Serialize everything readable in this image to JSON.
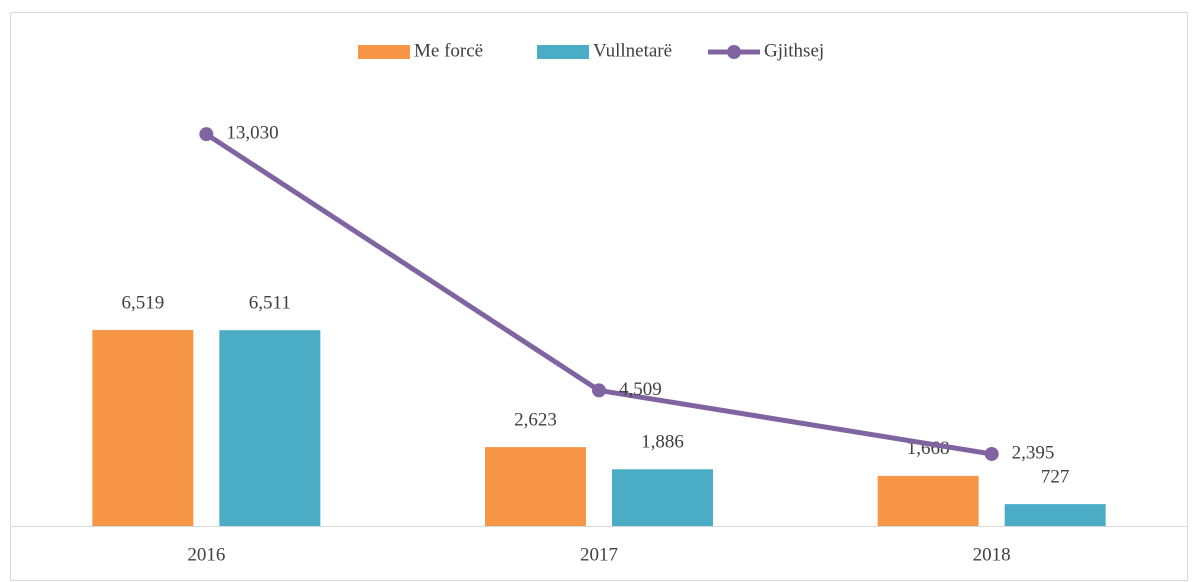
{
  "chart_data": {
    "type": "bar",
    "categories": [
      "2016",
      "2017",
      "2018"
    ],
    "ylim": [
      0,
      14000
    ],
    "legend": "top",
    "series": [
      {
        "name": "Me forcë",
        "type": "bar",
        "color": "#f79646",
        "values": [
          6519,
          2623,
          1668
        ],
        "value_labels": [
          "6,519",
          "2,623",
          "1,668"
        ]
      },
      {
        "name": "Vullnetarë",
        "type": "bar",
        "color": "#4bacc6",
        "values": [
          6511,
          1886,
          727
        ],
        "value_labels": [
          "6,511",
          "1,886",
          "727"
        ]
      },
      {
        "name": "Gjithsej",
        "type": "line",
        "color": "#8064a2",
        "values": [
          13030,
          4509,
          2395
        ],
        "value_labels": [
          "13,030",
          "4,509",
          "2,395"
        ]
      }
    ]
  }
}
